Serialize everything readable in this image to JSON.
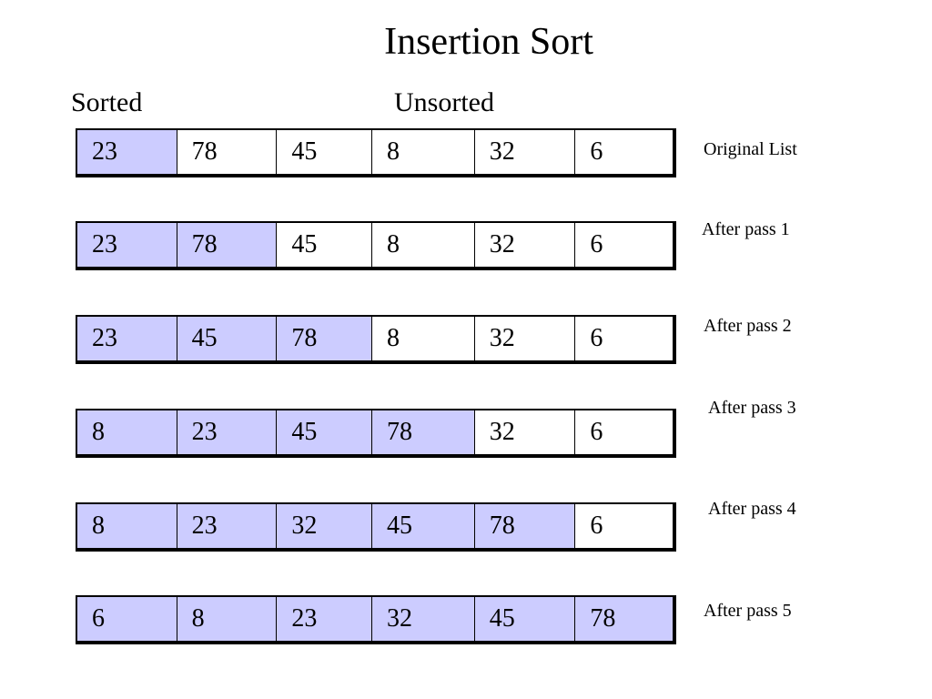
{
  "title": "Insertion Sort",
  "labels": {
    "sorted": "Sorted",
    "unsorted": "Unsorted"
  },
  "colors": {
    "sorted_fill": "#ccccff",
    "unsorted_fill": "#ffffff"
  },
  "rows": [
    {
      "caption": "Original List",
      "values": [
        "23",
        "78",
        "45",
        "8",
        "32",
        "6"
      ],
      "sorted_count": 1
    },
    {
      "caption": "After pass 1",
      "values": [
        "23",
        "78",
        "45",
        "8",
        "32",
        "6"
      ],
      "sorted_count": 2
    },
    {
      "caption": "After pass 2",
      "values": [
        "23",
        "45",
        "78",
        "8",
        "32",
        "6"
      ],
      "sorted_count": 3
    },
    {
      "caption": "After pass 3",
      "values": [
        "8",
        "23",
        "45",
        "78",
        "32",
        "6"
      ],
      "sorted_count": 4
    },
    {
      "caption": "After pass 4",
      "values": [
        "8",
        "23",
        "32",
        "45",
        "78",
        "6"
      ],
      "sorted_count": 5
    },
    {
      "caption": "After pass 5",
      "values": [
        "6",
        "8",
        "23",
        "32",
        "45",
        "78"
      ],
      "sorted_count": 6
    }
  ]
}
